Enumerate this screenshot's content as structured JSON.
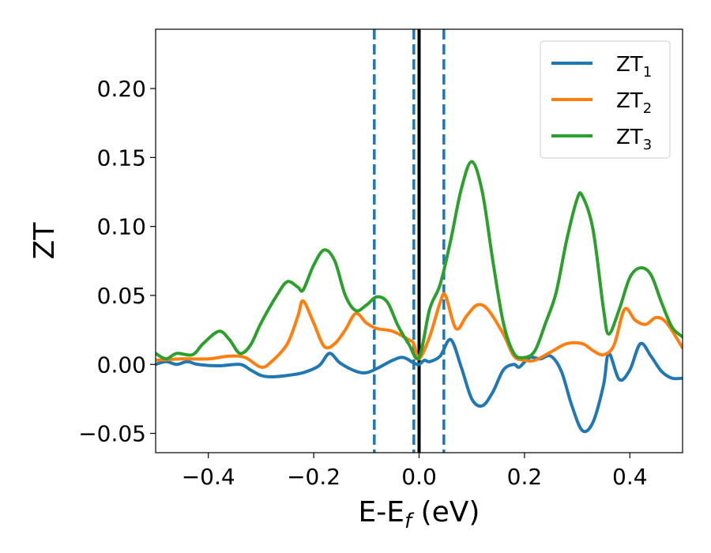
{
  "chart_data": {
    "type": "line",
    "title": "",
    "xlabel": {
      "main": "E-E",
      "sub": "f",
      "unit": " (eV)"
    },
    "ylabel": "ZT",
    "xlim": [
      -0.5,
      0.5
    ],
    "ylim": [
      -0.064,
      0.243
    ],
    "x_ticks": [
      -0.4,
      -0.2,
      0.0,
      0.2,
      0.4
    ],
    "x_tick_labels": [
      "−0.4",
      "−0.2",
      "0.0",
      "0.2",
      "0.4"
    ],
    "y_ticks": [
      -0.05,
      0.0,
      0.05,
      0.1,
      0.15,
      0.2
    ],
    "y_tick_labels": [
      "−0.05",
      "0.00",
      "0.05",
      "0.10",
      "0.15",
      "0.20"
    ],
    "grid": false,
    "legend_position": "top-right",
    "reference_lines": [
      {
        "x": -0.085,
        "style": "dashed",
        "color": "#1f77b4"
      },
      {
        "x": -0.01,
        "style": "dashed",
        "color": "#1f77b4"
      },
      {
        "x": 0.0,
        "style": "solid",
        "color": "#000000"
      },
      {
        "x": 0.047,
        "style": "dashed",
        "color": "#1f77b4"
      }
    ],
    "series": [
      {
        "name": "ZT",
        "subscript": "1",
        "color": "#1f77b4",
        "points": [
          [
            -0.5,
            0.0
          ],
          [
            -0.48,
            0.002
          ],
          [
            -0.46,
            0.0
          ],
          [
            -0.44,
            0.002
          ],
          [
            -0.42,
            0.0
          ],
          [
            -0.38,
            -0.001
          ],
          [
            -0.34,
            0.0
          ],
          [
            -0.32,
            -0.004
          ],
          [
            -0.3,
            -0.008
          ],
          [
            -0.28,
            -0.009
          ],
          [
            -0.25,
            -0.008
          ],
          [
            -0.22,
            -0.006
          ],
          [
            -0.19,
            -0.001
          ],
          [
            -0.17,
            0.008
          ],
          [
            -0.15,
            0.001
          ],
          [
            -0.12,
            -0.005
          ],
          [
            -0.1,
            -0.006
          ],
          [
            -0.08,
            -0.003
          ],
          [
            -0.05,
            0.003
          ],
          [
            -0.03,
            0.005
          ],
          [
            -0.01,
            0.001
          ],
          [
            0.0,
            0.0
          ],
          [
            0.01,
            0.003
          ],
          [
            0.02,
            0.002
          ],
          [
            0.04,
            0.006
          ],
          [
            0.06,
            0.018
          ],
          [
            0.08,
            -0.002
          ],
          [
            0.1,
            -0.025
          ],
          [
            0.12,
            -0.03
          ],
          [
            0.14,
            -0.02
          ],
          [
            0.16,
            -0.004
          ],
          [
            0.18,
            0.0
          ],
          [
            0.19,
            -0.002
          ],
          [
            0.21,
            0.005
          ],
          [
            0.23,
            0.004
          ],
          [
            0.25,
            0.006
          ],
          [
            0.27,
            -0.005
          ],
          [
            0.29,
            -0.03
          ],
          [
            0.31,
            -0.048
          ],
          [
            0.33,
            -0.042
          ],
          [
            0.35,
            -0.015
          ],
          [
            0.36,
            0.008
          ],
          [
            0.38,
            -0.011
          ],
          [
            0.4,
            -0.004
          ],
          [
            0.42,
            0.015
          ],
          [
            0.44,
            0.006
          ],
          [
            0.46,
            -0.005
          ],
          [
            0.48,
            -0.01
          ],
          [
            0.5,
            -0.01
          ]
        ]
      },
      {
        "name": "ZT",
        "subscript": "2",
        "color": "#ff7f0e",
        "points": [
          [
            -0.5,
            0.003
          ],
          [
            -0.45,
            0.004
          ],
          [
            -0.4,
            0.004
          ],
          [
            -0.36,
            0.006
          ],
          [
            -0.33,
            0.005
          ],
          [
            -0.3,
            -0.002
          ],
          [
            -0.28,
            0.002
          ],
          [
            -0.25,
            0.015
          ],
          [
            -0.23,
            0.035
          ],
          [
            -0.22,
            0.046
          ],
          [
            -0.2,
            0.03
          ],
          [
            -0.18,
            0.013
          ],
          [
            -0.16,
            0.015
          ],
          [
            -0.14,
            0.025
          ],
          [
            -0.12,
            0.037
          ],
          [
            -0.1,
            0.03
          ],
          [
            -0.08,
            0.026
          ],
          [
            -0.05,
            0.024
          ],
          [
            -0.02,
            0.018
          ],
          [
            -0.01,
            0.015
          ],
          [
            0.0,
            0.004
          ],
          [
            0.02,
            0.02
          ],
          [
            0.04,
            0.045
          ],
          [
            0.05,
            0.05
          ],
          [
            0.07,
            0.026
          ],
          [
            0.09,
            0.035
          ],
          [
            0.11,
            0.043
          ],
          [
            0.13,
            0.04
          ],
          [
            0.16,
            0.022
          ],
          [
            0.18,
            0.006
          ],
          [
            0.2,
            0.003
          ],
          [
            0.22,
            0.003
          ],
          [
            0.25,
            0.009
          ],
          [
            0.28,
            0.015
          ],
          [
            0.31,
            0.015
          ],
          [
            0.33,
            0.01
          ],
          [
            0.35,
            0.007
          ],
          [
            0.37,
            0.014
          ],
          [
            0.39,
            0.04
          ],
          [
            0.41,
            0.032
          ],
          [
            0.43,
            0.029
          ],
          [
            0.45,
            0.034
          ],
          [
            0.47,
            0.03
          ],
          [
            0.5,
            0.012
          ]
        ]
      },
      {
        "name": "ZT",
        "subscript": "3",
        "color": "#2ca02c",
        "points": [
          [
            -0.5,
            0.008
          ],
          [
            -0.48,
            0.004
          ],
          [
            -0.46,
            0.008
          ],
          [
            -0.43,
            0.007
          ],
          [
            -0.41,
            0.015
          ],
          [
            -0.38,
            0.024
          ],
          [
            -0.36,
            0.018
          ],
          [
            -0.34,
            0.008
          ],
          [
            -0.32,
            0.014
          ],
          [
            -0.3,
            0.03
          ],
          [
            -0.27,
            0.05
          ],
          [
            -0.25,
            0.06
          ],
          [
            -0.23,
            0.056
          ],
          [
            -0.22,
            0.054
          ],
          [
            -0.2,
            0.072
          ],
          [
            -0.18,
            0.083
          ],
          [
            -0.16,
            0.075
          ],
          [
            -0.14,
            0.05
          ],
          [
            -0.12,
            0.039
          ],
          [
            -0.1,
            0.043
          ],
          [
            -0.08,
            0.049
          ],
          [
            -0.06,
            0.045
          ],
          [
            -0.04,
            0.028
          ],
          [
            -0.02,
            0.015
          ],
          [
            0.0,
            0.005
          ],
          [
            0.02,
            0.04
          ],
          [
            0.04,
            0.058
          ],
          [
            0.06,
            0.09
          ],
          [
            0.08,
            0.127
          ],
          [
            0.1,
            0.147
          ],
          [
            0.12,
            0.125
          ],
          [
            0.14,
            0.075
          ],
          [
            0.16,
            0.03
          ],
          [
            0.18,
            0.008
          ],
          [
            0.2,
            0.005
          ],
          [
            0.22,
            0.01
          ],
          [
            0.24,
            0.03
          ],
          [
            0.26,
            0.052
          ],
          [
            0.28,
            0.09
          ],
          [
            0.3,
            0.12
          ],
          [
            0.31,
            0.122
          ],
          [
            0.33,
            0.098
          ],
          [
            0.35,
            0.04
          ],
          [
            0.36,
            0.022
          ],
          [
            0.38,
            0.04
          ],
          [
            0.4,
            0.063
          ],
          [
            0.42,
            0.07
          ],
          [
            0.44,
            0.065
          ],
          [
            0.46,
            0.045
          ],
          [
            0.48,
            0.027
          ],
          [
            0.5,
            0.02
          ]
        ]
      }
    ]
  }
}
